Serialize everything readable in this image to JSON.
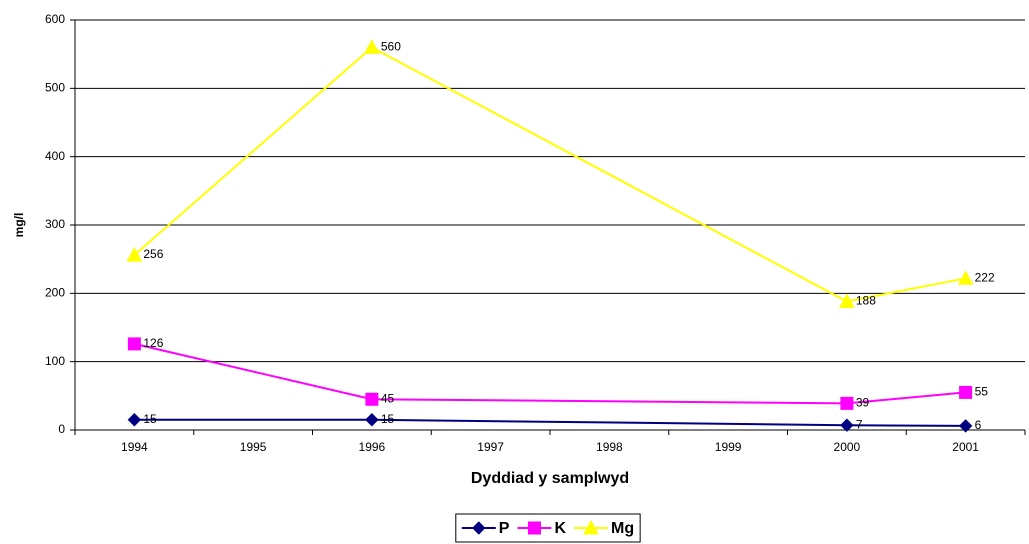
{
  "chart_data": {
    "type": "line",
    "x_label": "Dyddiad y samplwyd",
    "y_label": "mg/l",
    "x": [
      1994,
      1996,
      2000,
      2001
    ],
    "xlim": [
      1993.5,
      2001.5
    ],
    "xticks": [
      1994,
      1995,
      1996,
      1997,
      1998,
      1999,
      2000,
      2001
    ],
    "ylim": [
      0,
      600
    ],
    "yticks": [
      0,
      100,
      200,
      300,
      400,
      500,
      600
    ],
    "grid": true,
    "legend": "bottom",
    "series": [
      {
        "name": "P",
        "color": "#000080",
        "marker": "diamond",
        "values": [
          15,
          15,
          7,
          6
        ]
      },
      {
        "name": "K",
        "color": "#ff00ff",
        "marker": "square",
        "values": [
          126,
          45,
          39,
          55
        ]
      },
      {
        "name": "Mg",
        "color": "#ffff00",
        "marker": "triangle",
        "values": [
          256,
          560,
          188,
          222
        ]
      }
    ]
  }
}
